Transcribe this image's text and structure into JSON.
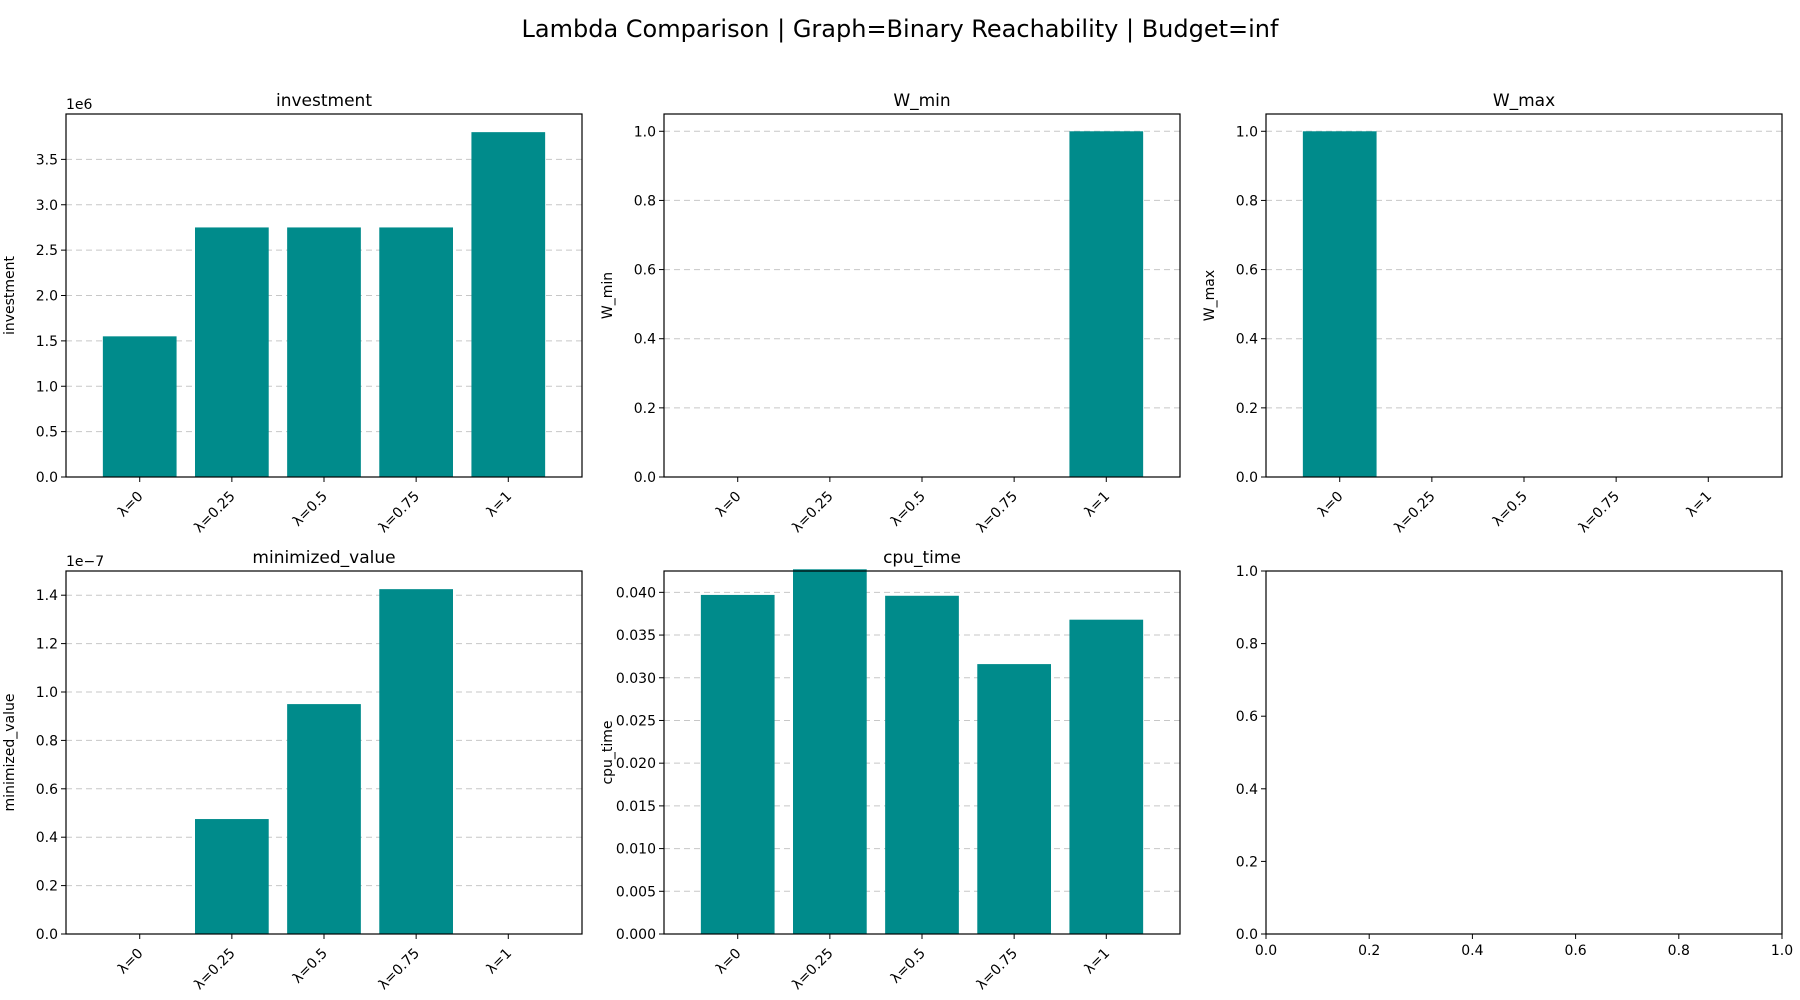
{
  "suptitle": "Lambda Comparison | Graph=Binary Reachability | Budget=inf",
  "bar_color": "#008b8b",
  "chart_data": [
    {
      "type": "bar",
      "title": "investment",
      "ylabel": "investment",
      "offset_text": "1e6",
      "categories": [
        "λ=0",
        "λ=0.25",
        "λ=0.5",
        "λ=0.75",
        "λ=1"
      ],
      "values": [
        1550000,
        2750000,
        2750000,
        2750000,
        3800000
      ],
      "ylim": [
        0,
        4000000
      ],
      "yticks": [
        0,
        500000,
        1000000,
        1500000,
        2000000,
        2500000,
        3000000,
        3500000
      ],
      "ytick_labels": [
        "0.0",
        "0.5",
        "1.0",
        "1.5",
        "2.0",
        "2.5",
        "3.0",
        "3.5"
      ],
      "grid": "y"
    },
    {
      "type": "bar",
      "title": "W_min",
      "ylabel": "W_min",
      "categories": [
        "λ=0",
        "λ=0.25",
        "λ=0.5",
        "λ=0.75",
        "λ=1"
      ],
      "values": [
        0,
        0,
        0,
        0,
        1.0
      ],
      "ylim": [
        0,
        1.05
      ],
      "yticks": [
        0,
        0.2,
        0.4,
        0.6,
        0.8,
        1.0
      ],
      "ytick_labels": [
        "0.0",
        "0.2",
        "0.4",
        "0.6",
        "0.8",
        "1.0"
      ],
      "grid": "y"
    },
    {
      "type": "bar",
      "title": "W_max",
      "ylabel": "W_max",
      "categories": [
        "λ=0",
        "λ=0.25",
        "λ=0.5",
        "λ=0.75",
        "λ=1"
      ],
      "values": [
        1.0,
        0,
        0,
        0,
        0
      ],
      "ylim": [
        0,
        1.05
      ],
      "yticks": [
        0,
        0.2,
        0.4,
        0.6,
        0.8,
        1.0
      ],
      "ytick_labels": [
        "0.0",
        "0.2",
        "0.4",
        "0.6",
        "0.8",
        "1.0"
      ],
      "grid": "y"
    },
    {
      "type": "bar",
      "title": "minimized_value",
      "ylabel": "minimized_value",
      "offset_text": "1e−7",
      "categories": [
        "λ=0",
        "λ=0.25",
        "λ=0.5",
        "λ=0.75",
        "λ=1"
      ],
      "values": [
        0,
        4.75e-08,
        9.5e-08,
        1.425e-07,
        0
      ],
      "ylim": [
        0,
        1.5e-07
      ],
      "yticks": [
        0,
        2e-08,
        4e-08,
        6e-08,
        8e-08,
        1e-07,
        1.2e-07,
        1.4e-07
      ],
      "ytick_labels": [
        "0.0",
        "0.2",
        "0.4",
        "0.6",
        "0.8",
        "1.0",
        "1.2",
        "1.4"
      ],
      "grid": "y"
    },
    {
      "type": "bar",
      "title": "cpu_time",
      "ylabel": "cpu_time",
      "categories": [
        "λ=0",
        "λ=0.25",
        "λ=0.5",
        "λ=0.75",
        "λ=1"
      ],
      "values": [
        0.0397,
        0.0427,
        0.0396,
        0.0316,
        0.0368
      ],
      "ylim": [
        0,
        0.0425
      ],
      "yticks": [
        0,
        0.005,
        0.01,
        0.015,
        0.02,
        0.025,
        0.03,
        0.035,
        0.04
      ],
      "ytick_labels": [
        "0.000",
        "0.005",
        "0.010",
        "0.015",
        "0.020",
        "0.025",
        "0.030",
        "0.035",
        "0.040"
      ],
      "grid": "y"
    },
    {
      "type": "empty",
      "xlim": [
        0,
        1
      ],
      "ylim": [
        0,
        1
      ],
      "xticks": [
        0,
        0.2,
        0.4,
        0.6,
        0.8,
        1.0
      ],
      "xtick_labels": [
        "0.0",
        "0.2",
        "0.4",
        "0.6",
        "0.8",
        "1.0"
      ],
      "yticks": [
        0,
        0.2,
        0.4,
        0.6,
        0.8,
        1.0
      ],
      "ytick_labels": [
        "0.0",
        "0.2",
        "0.4",
        "0.6",
        "0.8",
        "1.0"
      ]
    }
  ]
}
